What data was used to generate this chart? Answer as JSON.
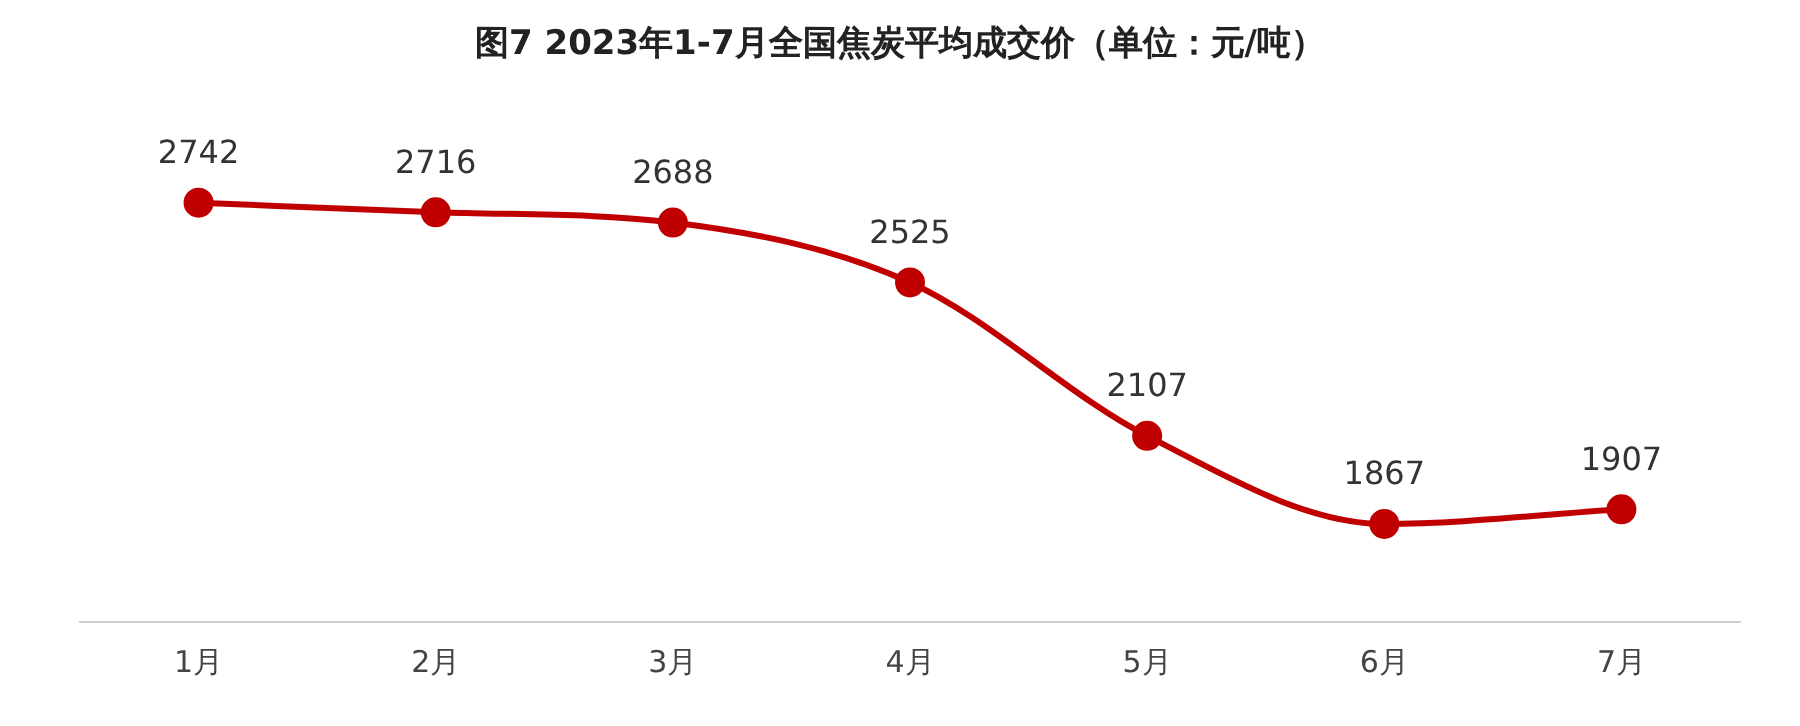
{
  "chart_data": {
    "type": "line",
    "title": "图7 2023年1-7月全国焦炭平均成交价（单位：元/吨）",
    "categories": [
      "1月",
      "2月",
      "3月",
      "4月",
      "5月",
      "6月",
      "7月"
    ],
    "series": [
      {
        "color": "#c00000",
        "values": [
          2742,
          2716,
          2688,
          2525,
          2107,
          1867,
          1907
        ]
      }
    ],
    "data_labels": true,
    "grid": false,
    "legend": false,
    "marker": "circle",
    "line_style": "solid",
    "tick_labels": "x"
  }
}
